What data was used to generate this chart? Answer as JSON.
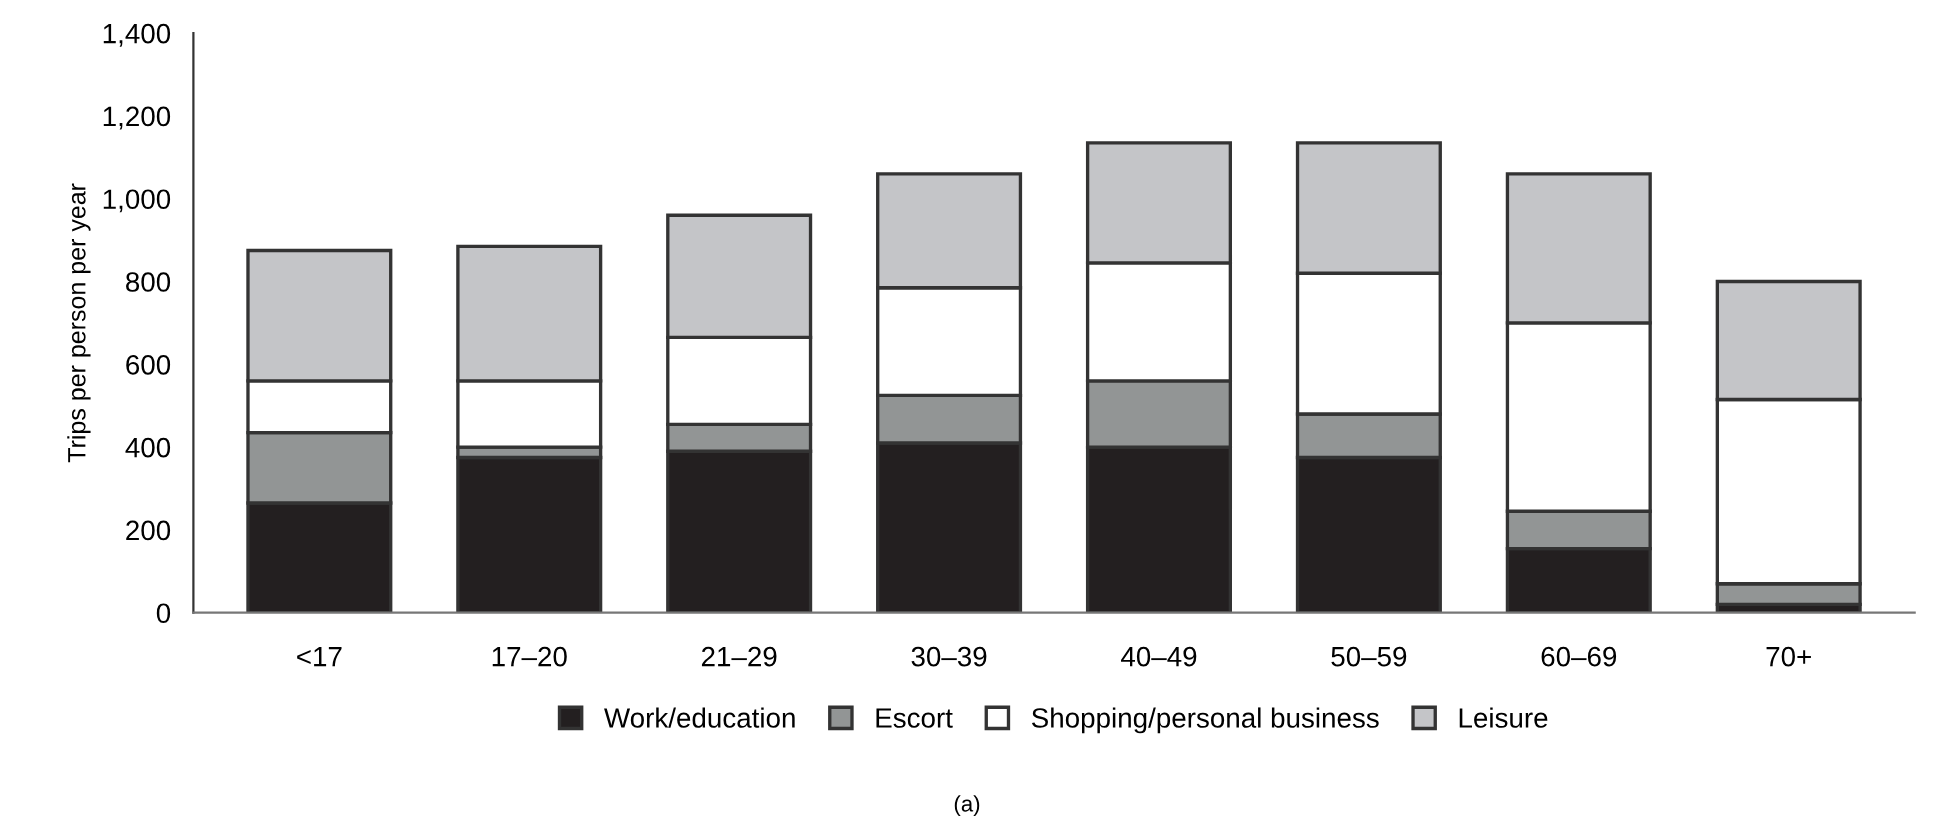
{
  "chart_data": {
    "type": "bar",
    "stacked": true,
    "ylabel": "Trips per person per year",
    "categories": [
      "<17",
      "17–20",
      "21–29",
      "30–39",
      "40–49",
      "50–59",
      "60–69",
      "70+"
    ],
    "series": [
      {
        "name": "Work/education",
        "color": "#231f20",
        "values": [
          265,
          375,
          390,
          410,
          400,
          375,
          155,
          20
        ]
      },
      {
        "name": "Escort",
        "color": "#929595",
        "values": [
          170,
          25,
          65,
          115,
          160,
          105,
          90,
          50
        ]
      },
      {
        "name": "Shopping/personal business",
        "color": "#ffffff",
        "values": [
          125,
          160,
          210,
          260,
          285,
          340,
          455,
          445
        ]
      },
      {
        "name": "Leisure",
        "color": "#c4c5c8",
        "values": [
          315,
          325,
          295,
          275,
          290,
          315,
          360,
          285
        ]
      }
    ],
    "ylim": [
      0,
      1400
    ],
    "yticks": [
      0,
      {
        "value": 200,
        "label": "200"
      },
      {
        "value": 400,
        "label": "400"
      },
      {
        "value": 600,
        "label": "600"
      },
      {
        "value": 800,
        "label": "800"
      },
      {
        "value": 1000,
        "label": "1,000"
      },
      {
        "value": 1200,
        "label": "1,200"
      },
      {
        "value": 1400,
        "label": "1,400"
      }
    ],
    "grid": false,
    "legend": "bottom",
    "annotations": [
      "(a)"
    ]
  }
}
